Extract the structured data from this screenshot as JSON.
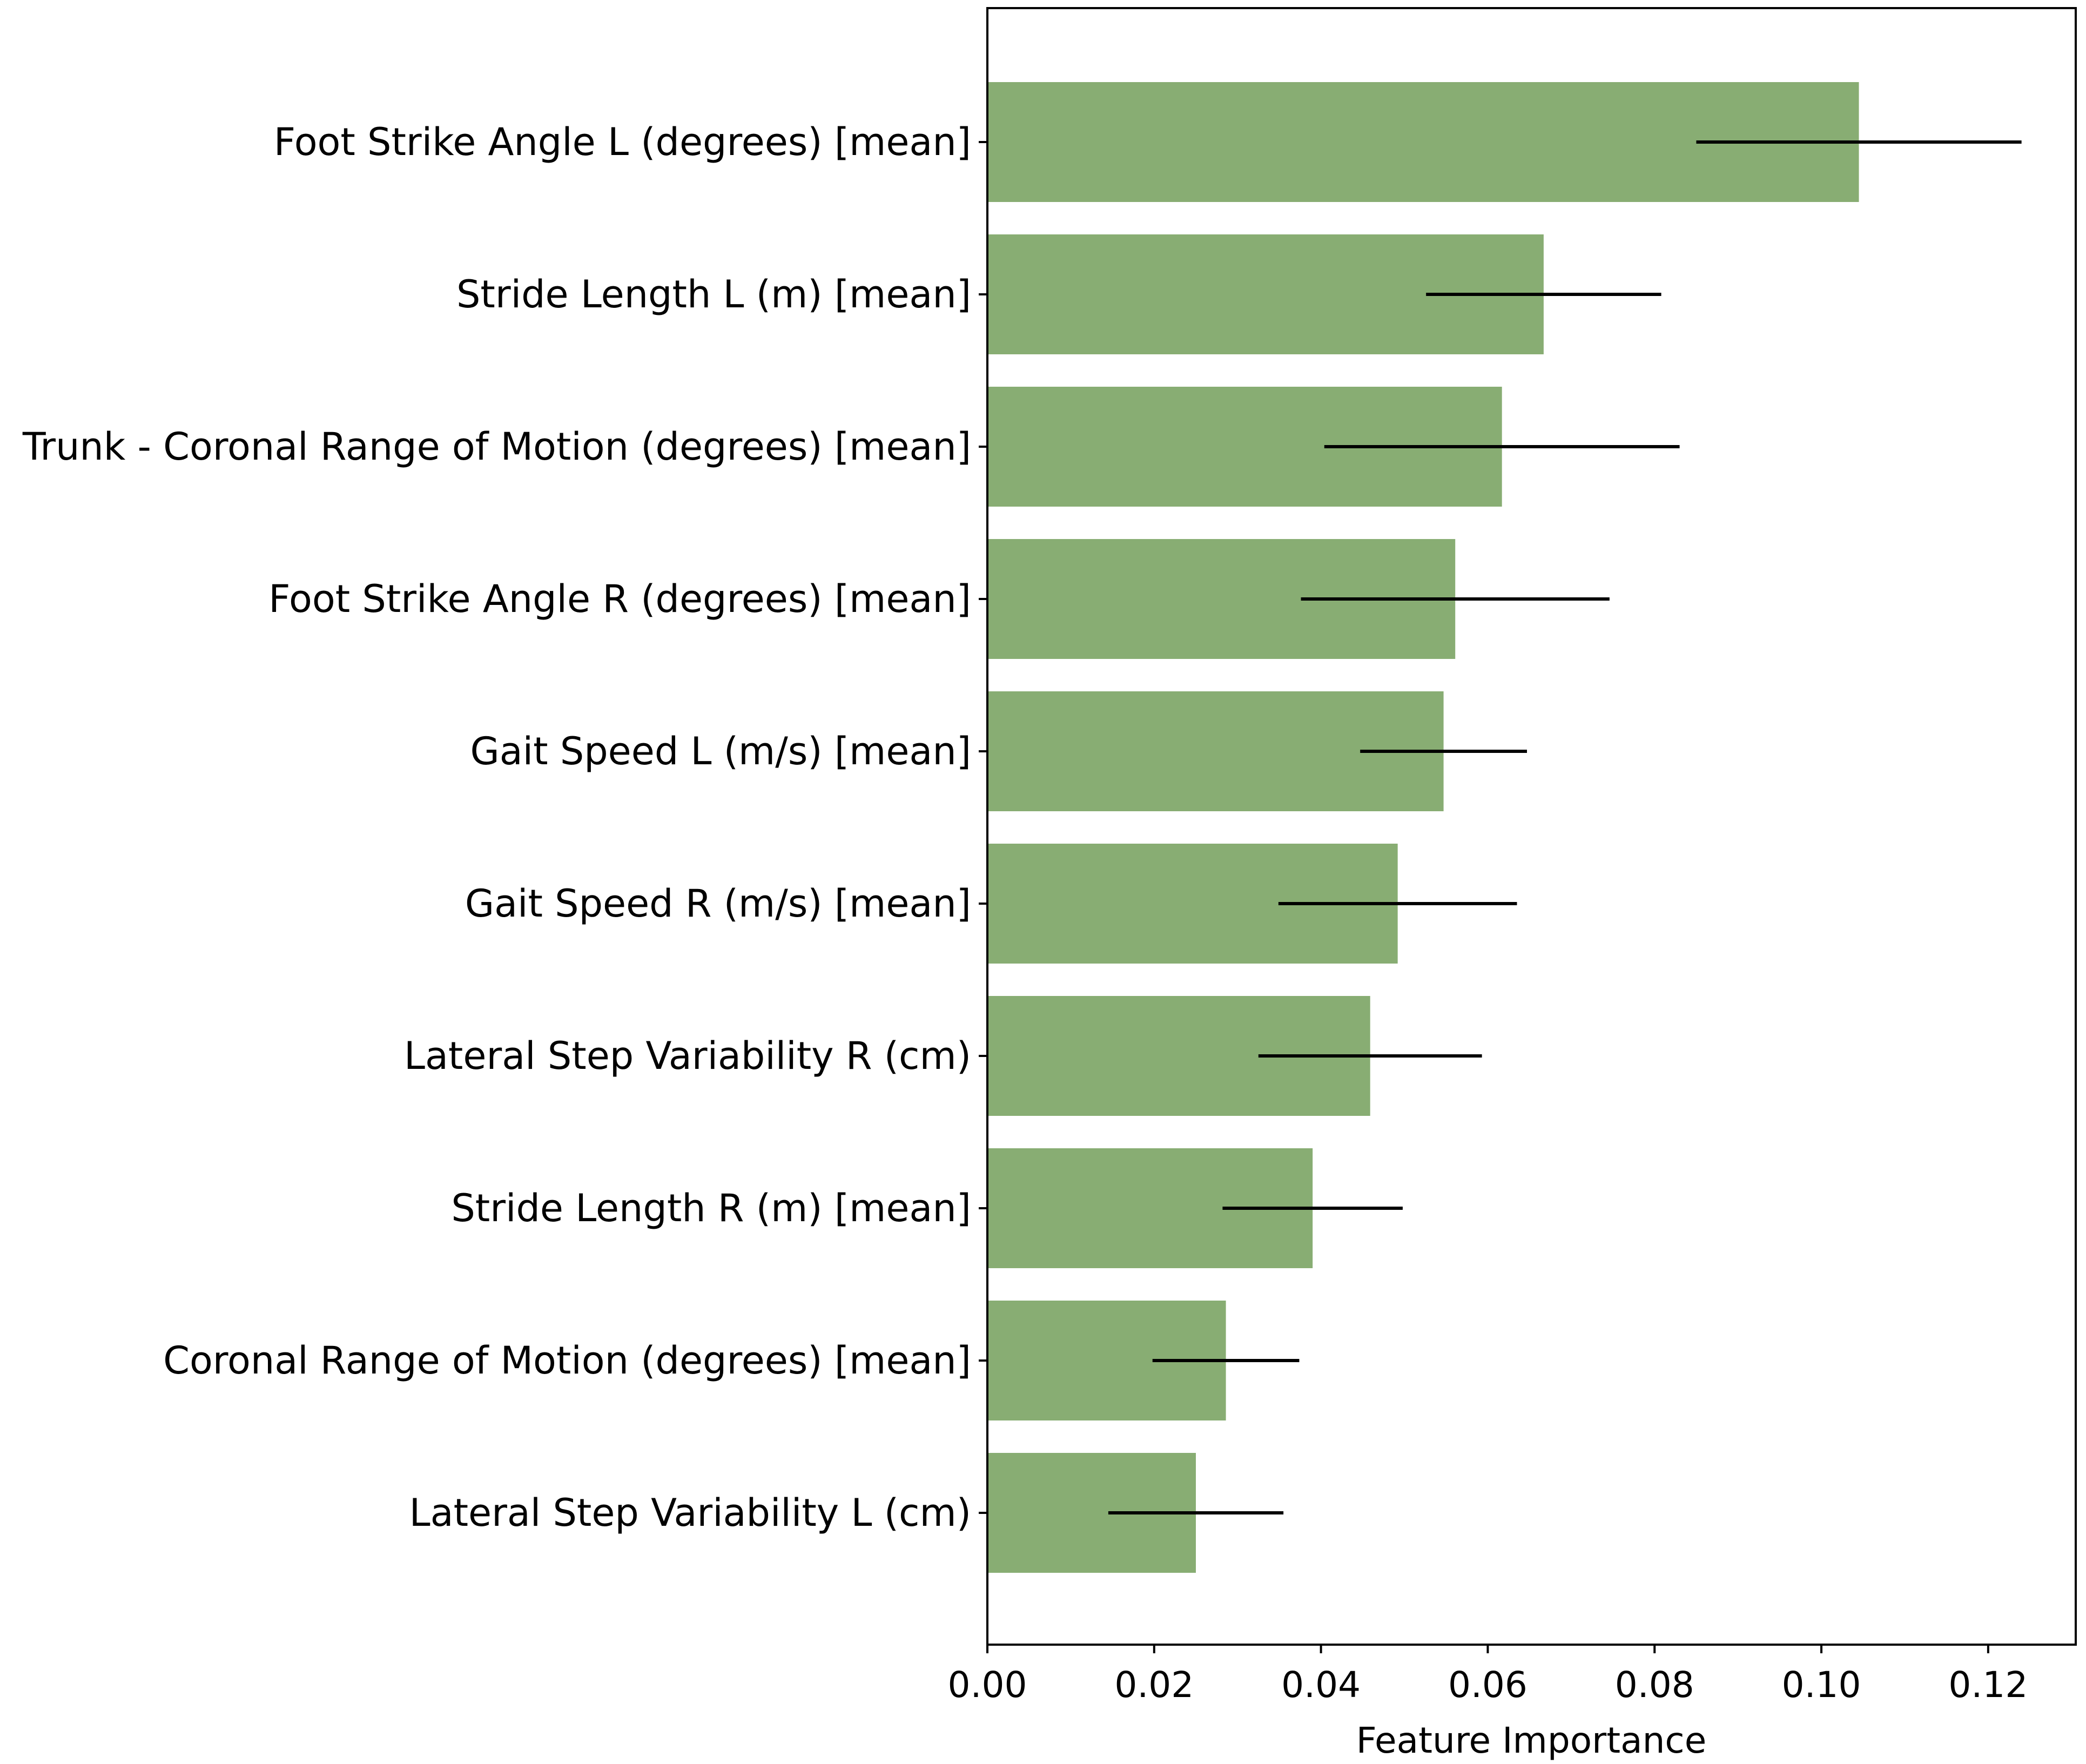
{
  "chart_data": {
    "type": "bar",
    "orientation": "horizontal",
    "categories": [
      "Foot Strike Angle L (degrees) [mean]",
      "Stride Length L (m) [mean]",
      "Trunk - Coronal Range of Motion (degrees) [mean]",
      "Foot Strike Angle R (degrees) [mean]",
      "Gait Speed L (m/s) [mean]",
      "Gait Speed R (m/s) [mean]",
      "Lateral Step Variability R (cm)",
      "Stride Length R (m) [mean]",
      "Coronal Range of Motion (degrees) [mean]",
      "Lateral Step Variability L (cm)"
    ],
    "values": [
      0.1045,
      0.0667,
      0.0617,
      0.0561,
      0.0547,
      0.0492,
      0.0459,
      0.039,
      0.0286,
      0.025
    ],
    "error": [
      0.0195,
      0.0141,
      0.0213,
      0.0185,
      0.01,
      0.0143,
      0.0134,
      0.0108,
      0.0088,
      0.0105
    ],
    "xlabel": "Feature Importance",
    "ylabel": "",
    "title": "",
    "xlim": [
      0,
      0.1305
    ],
    "xticks": [
      "0.00",
      "0.02",
      "0.04",
      "0.06",
      "0.08",
      "0.10",
      "0.12"
    ],
    "xtick_values": [
      0,
      0.02,
      0.04,
      0.06,
      0.08,
      0.1,
      0.12
    ],
    "bar_color": "#88ad73",
    "error_color": "#000000",
    "grid": false,
    "legend": "none"
  }
}
